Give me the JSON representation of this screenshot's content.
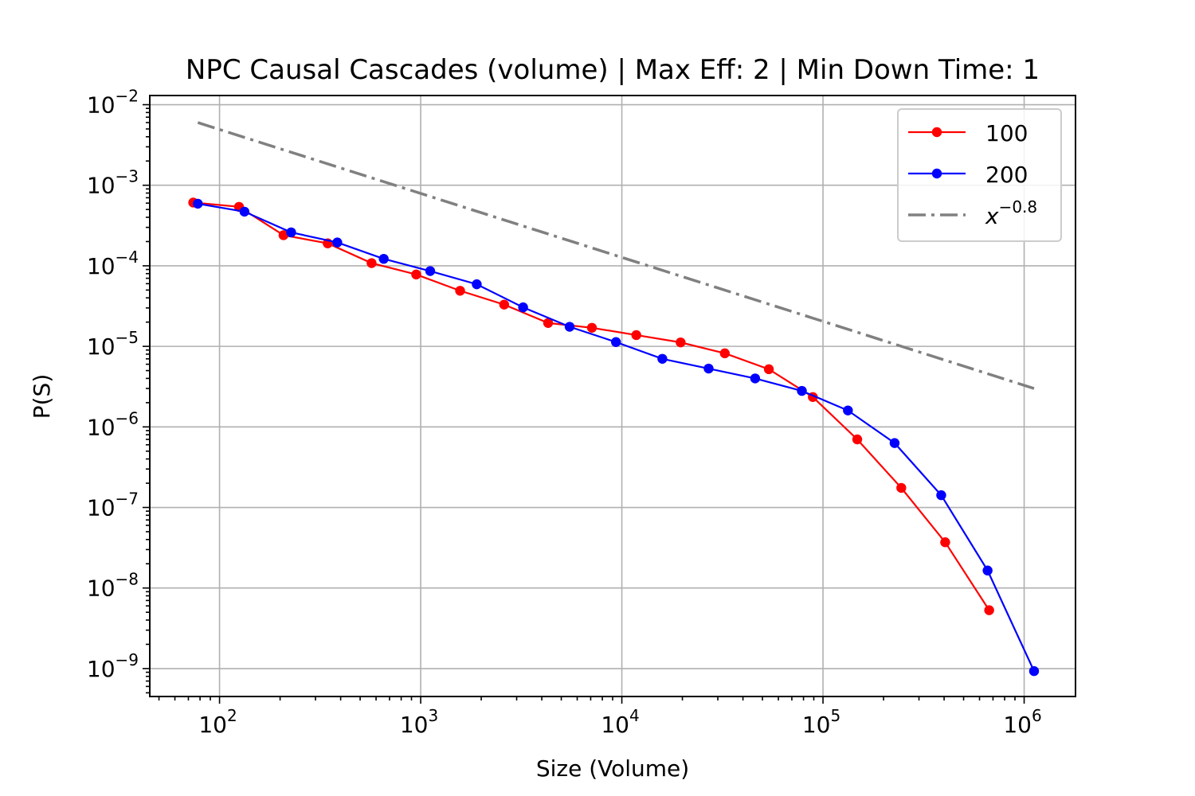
{
  "chart_data": {
    "type": "line",
    "title": "NPC Causal Cascades (volume) | Max Eff: 2 | Min Down Time: 1",
    "xlabel": "Size (Volume)",
    "ylabel": "P(S)",
    "xscale": "log",
    "yscale": "log",
    "xlim": [
      45,
      1800000
    ],
    "ylim": [
      4.5e-10,
      0.013
    ],
    "xticks": [
      {
        "value": 100,
        "base": "10",
        "exp": "2"
      },
      {
        "value": 1000,
        "base": "10",
        "exp": "3"
      },
      {
        "value": 10000,
        "base": "10",
        "exp": "4"
      },
      {
        "value": 100000,
        "base": "10",
        "exp": "5"
      },
      {
        "value": 1000000,
        "base": "10",
        "exp": "6"
      }
    ],
    "yticks": [
      {
        "value": 1e-09,
        "base": "10",
        "exp": "−9"
      },
      {
        "value": 1e-08,
        "base": "10",
        "exp": "−8"
      },
      {
        "value": 1e-07,
        "base": "10",
        "exp": "−7"
      },
      {
        "value": 1e-06,
        "base": "10",
        "exp": "−6"
      },
      {
        "value": 1e-05,
        "base": "10",
        "exp": "−5"
      },
      {
        "value": 0.0001,
        "base": "10",
        "exp": "−4"
      },
      {
        "value": 0.001,
        "base": "10",
        "exp": "−3"
      },
      {
        "value": 0.01,
        "base": "10",
        "exp": "−2"
      }
    ],
    "grid": true,
    "legend_position": "top-right",
    "series": [
      {
        "name": "100",
        "color": "#ff0000",
        "marker": "circle",
        "x": [
          74,
          125,
          208,
          345,
          570,
          950,
          1570,
          2600,
          4300,
          7100,
          11800,
          19600,
          32500,
          53800,
          89000,
          148000,
          245000,
          405000,
          670000
        ],
        "y": [
          0.00061,
          0.00054,
          0.00024,
          0.00019,
          0.000108,
          7.8e-05,
          4.9e-05,
          3.3e-05,
          1.95e-05,
          1.7e-05,
          1.38e-05,
          1.12e-05,
          8.2e-06,
          5.2e-06,
          2.35e-06,
          7e-07,
          1.75e-07,
          3.7e-08,
          5.3e-09
        ]
      },
      {
        "name": "200",
        "color": "#0000ff",
        "marker": "circle",
        "x": [
          78,
          133,
          227,
          385,
          655,
          1115,
          1900,
          3230,
          5500,
          9350,
          15900,
          27000,
          46000,
          78500,
          133000,
          227000,
          387000,
          658000,
          1120000
        ],
        "y": [
          0.00059,
          0.00047,
          0.00026,
          0.000195,
          0.000122,
          8.6e-05,
          5.9e-05,
          3.05e-05,
          1.75e-05,
          1.13e-05,
          7e-06,
          5.3e-06,
          4e-06,
          2.8e-06,
          1.6e-06,
          6.3e-07,
          1.42e-07,
          1.65e-08,
          9.3e-10
        ]
      },
      {
        "name": "x^{−0.8}",
        "name_base": "x",
        "name_exp": "−0.8",
        "color": "#808080",
        "linestyle": "dashdot",
        "x": [
          78,
          1120000
        ],
        "y": [
          0.006,
          3e-06
        ]
      }
    ]
  }
}
